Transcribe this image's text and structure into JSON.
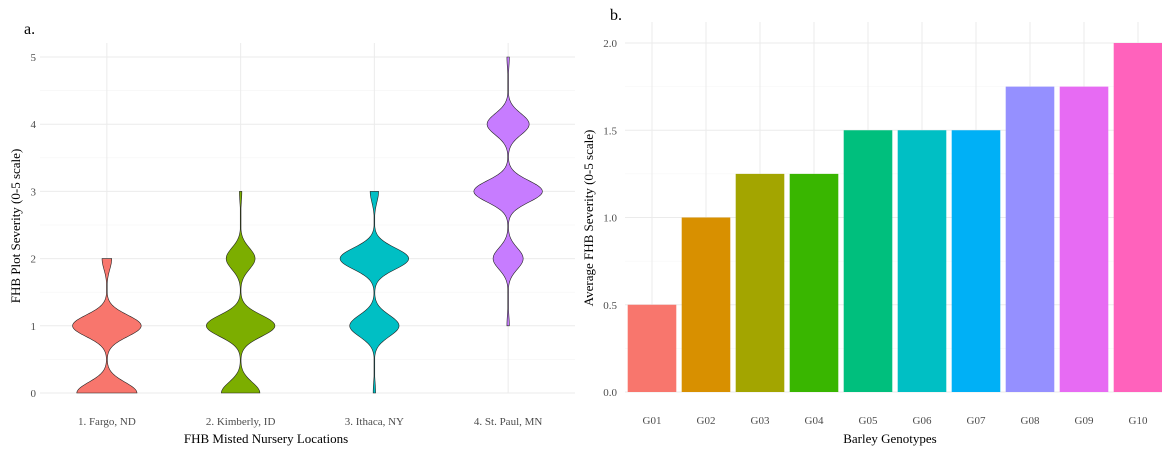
{
  "chart_data": [
    {
      "type": "violin",
      "panel_label": "a.",
      "xlabel": "FHB Misted Nursery Locations",
      "ylabel": "FHB Plot Severity (0-5 scale)",
      "ylim": [
        0,
        5
      ],
      "yticks": [
        "0",
        "1",
        "2",
        "3",
        "4",
        "5"
      ],
      "grid": true,
      "categories": [
        "1. Fargo, ND",
        "2. Kimberly, ID",
        "3. Ithaca, NY",
        "4. St. Paul, MN"
      ],
      "colors": [
        "#F8766D",
        "#7CAE00",
        "#00BFC4",
        "#C77CFF"
      ],
      "series": [
        {
          "density": [
            {
              "y": 0,
              "w": 0.5
            },
            {
              "y": 1,
              "w": 0.57
            },
            {
              "y": 2,
              "w": 0.08
            }
          ],
          "range": [
            0,
            2
          ]
        },
        {
          "density": [
            {
              "y": 0,
              "w": 0.32
            },
            {
              "y": 1,
              "w": 0.57
            },
            {
              "y": 2,
              "w": 0.24
            },
            {
              "y": 3,
              "w": 0.02
            }
          ],
          "range": [
            0,
            3
          ]
        },
        {
          "density": [
            {
              "y": 0,
              "w": 0.02
            },
            {
              "y": 1,
              "w": 0.41
            },
            {
              "y": 2,
              "w": 0.57
            },
            {
              "y": 3,
              "w": 0.07
            }
          ],
          "range": [
            0,
            3
          ]
        },
        {
          "density": [
            {
              "y": 1,
              "w": 0.02
            },
            {
              "y": 2,
              "w": 0.25
            },
            {
              "y": 3,
              "w": 0.57
            },
            {
              "y": 4,
              "w": 0.35
            },
            {
              "y": 5,
              "w": 0.02
            }
          ],
          "range": [
            1,
            5
          ]
        }
      ]
    },
    {
      "type": "bar",
      "panel_label": "b.",
      "xlabel": "Barley Genotypes",
      "ylabel": "Average FHB Severity (0-5 scale)",
      "ylim": [
        0,
        2
      ],
      "yticks": [
        "0.0",
        "0.5",
        "1.0",
        "1.5",
        "2.0"
      ],
      "grid": true,
      "categories": [
        "G01",
        "G02",
        "G03",
        "G04",
        "G05",
        "G06",
        "G07",
        "G08",
        "G09",
        "G10"
      ],
      "values": [
        0.5,
        1.0,
        1.25,
        1.25,
        1.5,
        1.5,
        1.5,
        1.75,
        1.75,
        2.0
      ],
      "colors": [
        "#F8766D",
        "#D89000",
        "#A3A500",
        "#39B600",
        "#00BF7D",
        "#00BFC4",
        "#00B0F6",
        "#9590FF",
        "#E76BF3",
        "#FF62BC"
      ]
    }
  ]
}
